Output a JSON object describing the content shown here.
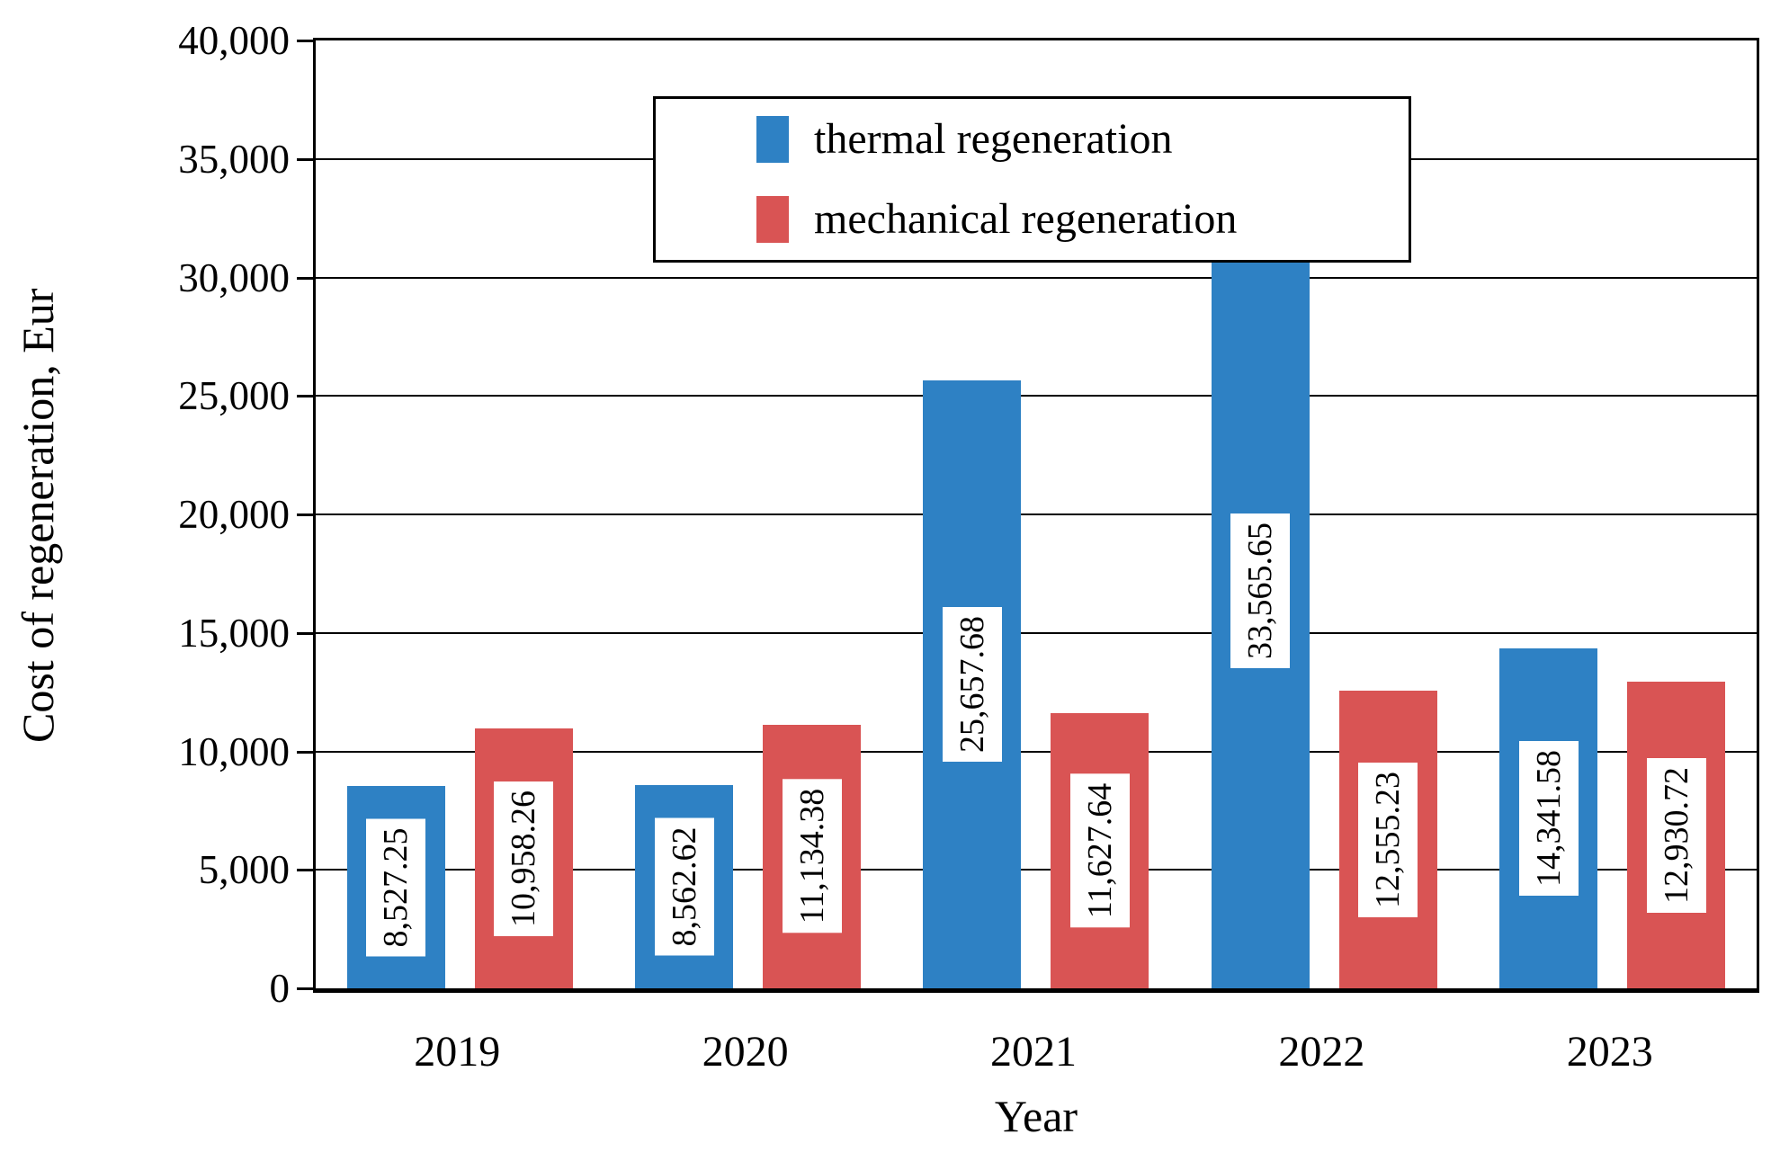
{
  "chart_data": {
    "type": "bar",
    "title": "",
    "xlabel": "Year",
    "ylabel": "Cost of regeneration, Eur",
    "categories": [
      "2019",
      "2020",
      "2021",
      "2022",
      "2023"
    ],
    "series": [
      {
        "name": "thermal regeneration",
        "color": "#2E81C4",
        "values": [
          8527.25,
          8562.62,
          25657.68,
          33565.65,
          14341.58
        ],
        "labels": [
          "8,527.25",
          "8,562.62",
          "25,657.68",
          "33,565.65",
          "14,341.58"
        ]
      },
      {
        "name": "mechanical regeneration",
        "color": "#D95454",
        "values": [
          10958.26,
          11134.38,
          11627.64,
          12555.23,
          12930.72
        ],
        "labels": [
          "10,958.26",
          "11,134.38",
          "11,627.64",
          "12,555.23",
          "12,930.72"
        ]
      }
    ],
    "ylim": [
      0,
      40000
    ],
    "ytick_values": [
      0,
      5000,
      10000,
      15000,
      20000,
      25000,
      30000,
      35000,
      40000
    ],
    "ytick_labels": [
      "0",
      "5,000",
      "10,000",
      "15,000",
      "20,000",
      "25,000",
      "30,000",
      "35,000",
      "40,000"
    ],
    "grid": true,
    "legend_position": "top-left",
    "frame_color": "#000000",
    "label_box_color": "#FFFFFF"
  }
}
